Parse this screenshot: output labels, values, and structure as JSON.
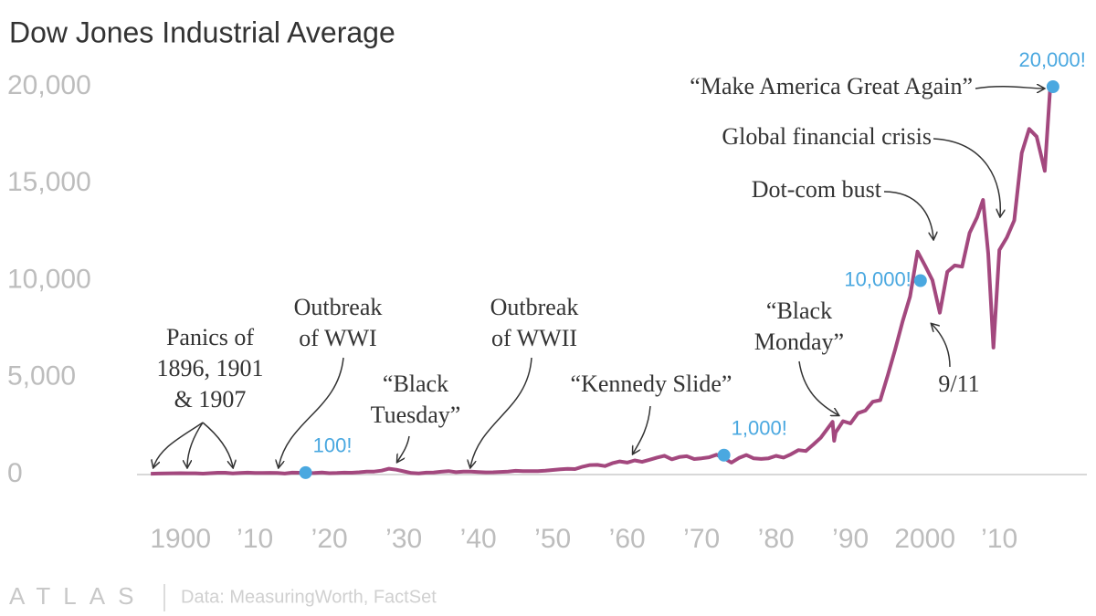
{
  "chart_data": {
    "type": "line",
    "title": "Dow Jones Industrial Average",
    "x": [
      1896,
      1897,
      1898,
      1899,
      1900,
      1901,
      1902,
      1903,
      1904,
      1905,
      1906,
      1907,
      1908,
      1909,
      1910,
      1911,
      1912,
      1913,
      1914,
      1915,
      1916,
      1917,
      1918,
      1919,
      1920,
      1921,
      1922,
      1923,
      1924,
      1925,
      1926,
      1927,
      1928,
      1929,
      1930,
      1931,
      1932,
      1933,
      1934,
      1935,
      1936,
      1937,
      1938,
      1939,
      1940,
      1941,
      1942,
      1943,
      1944,
      1945,
      1946,
      1947,
      1948,
      1949,
      1950,
      1951,
      1952,
      1953,
      1954,
      1955,
      1956,
      1957,
      1958,
      1959,
      1960,
      1961,
      1962,
      1963,
      1964,
      1965,
      1966,
      1967,
      1968,
      1969,
      1970,
      1971,
      1972,
      1973,
      1974,
      1975,
      1976,
      1977,
      1978,
      1979,
      1980,
      1981,
      1982,
      1983,
      1984,
      1985,
      1986,
      1987.6,
      1987.8,
      1988,
      1989,
      1990,
      1991,
      1992,
      1993,
      1994,
      1995,
      1996,
      1997,
      1998,
      1999,
      2000,
      2001,
      2002,
      2003,
      2004,
      2005,
      2006,
      2007,
      2007.8,
      2008.5,
      2009.2,
      2010,
      2011,
      2012,
      2013,
      2014,
      2015,
      2016.1,
      2016.8,
      2017.2
    ],
    "values": [
      40,
      50,
      60,
      66,
      70,
      64,
      64,
      49,
      69,
      96,
      94,
      59,
      86,
      99,
      81,
      82,
      88,
      79,
      54,
      99,
      95,
      74,
      82,
      107,
      72,
      81,
      99,
      96,
      120,
      156,
      157,
      202,
      300,
      248,
      165,
      78,
      60,
      100,
      104,
      144,
      180,
      121,
      155,
      150,
      131,
      111,
      119,
      136,
      152,
      193,
      177,
      181,
      177,
      200,
      235,
      269,
      292,
      281,
      404,
      488,
      500,
      436,
      584,
      679,
      616,
      731,
      652,
      763,
      874,
      969,
      786,
      905,
      944,
      800,
      839,
      890,
      1020,
      851,
      616,
      852,
      1005,
      831,
      805,
      839,
      964,
      875,
      1047,
      1259,
      1212,
      1547,
      1896,
      2722,
      1739,
      2169,
      2753,
      2634,
      3169,
      3301,
      3754,
      3834,
      5117,
      6448,
      7908,
      9181,
      11497,
      10787,
      10022,
      8342,
      10454,
      10783,
      10718,
      12463,
      13265,
      14165,
      11400,
      6547,
      11578,
      12218,
      13104,
      16577,
      17823,
      17425,
      15660,
      19763,
      20000
    ],
    "color": "#a3487e",
    "xlim": [
      1882,
      2022
    ],
    "ylim": [
      0,
      20000
    ],
    "xticks": [
      1900,
      {
        "value": 1910,
        "label": "’10"
      },
      {
        "value": 1920,
        "label": "’20"
      },
      {
        "value": 1930,
        "label": "’30"
      },
      {
        "value": 1940,
        "label": "’40"
      },
      {
        "value": 1950,
        "label": "’50"
      },
      {
        "value": 1960,
        "label": "’60"
      },
      {
        "value": 1970,
        "label": "’70"
      },
      {
        "value": 1980,
        "label": "’80"
      },
      {
        "value": 1990,
        "label": "’90"
      },
      2000,
      {
        "value": 2010,
        "label": "’10"
      }
    ],
    "yticks": [
      0,
      {
        "value": 5000,
        "label": "5,000"
      },
      {
        "value": 10000,
        "label": "10,000"
      },
      {
        "value": 15000,
        "label": "15,000"
      },
      {
        "value": 20000,
        "label": "20,000"
      }
    ],
    "grid": false,
    "milestones": {
      "x": [
        1916.8,
        1973.0,
        1999.4,
        2017.2
      ],
      "values": [
        100,
        1000,
        10000,
        20000
      ],
      "value_labels": [
        "100!",
        "1,000!",
        "10,000!",
        "20,000!"
      ],
      "color": "#4aa8e0"
    },
    "annotations": [
      {
        "lines": [
          "Panics of",
          "1896, 1901",
          "& 1907"
        ]
      },
      {
        "lines": [
          "Outbreak",
          "of WWI"
        ]
      },
      {
        "lines": [
          "“Black",
          "Tuesday”"
        ]
      },
      {
        "lines": [
          "Outbreak",
          "of WWII"
        ]
      },
      {
        "lines": [
          "“Kennedy Slide”"
        ]
      },
      {
        "lines": [
          "“Black",
          "Monday”"
        ]
      },
      {
        "lines": [
          "9/11"
        ]
      },
      {
        "lines": [
          "Dot-com bust"
        ]
      },
      {
        "lines": [
          "Global financial crisis"
        ]
      },
      {
        "lines": [
          "“Make America Great Again”"
        ]
      }
    ],
    "brand": "ATLAS",
    "source": "Data: MeasuringWorth, FactSet"
  }
}
